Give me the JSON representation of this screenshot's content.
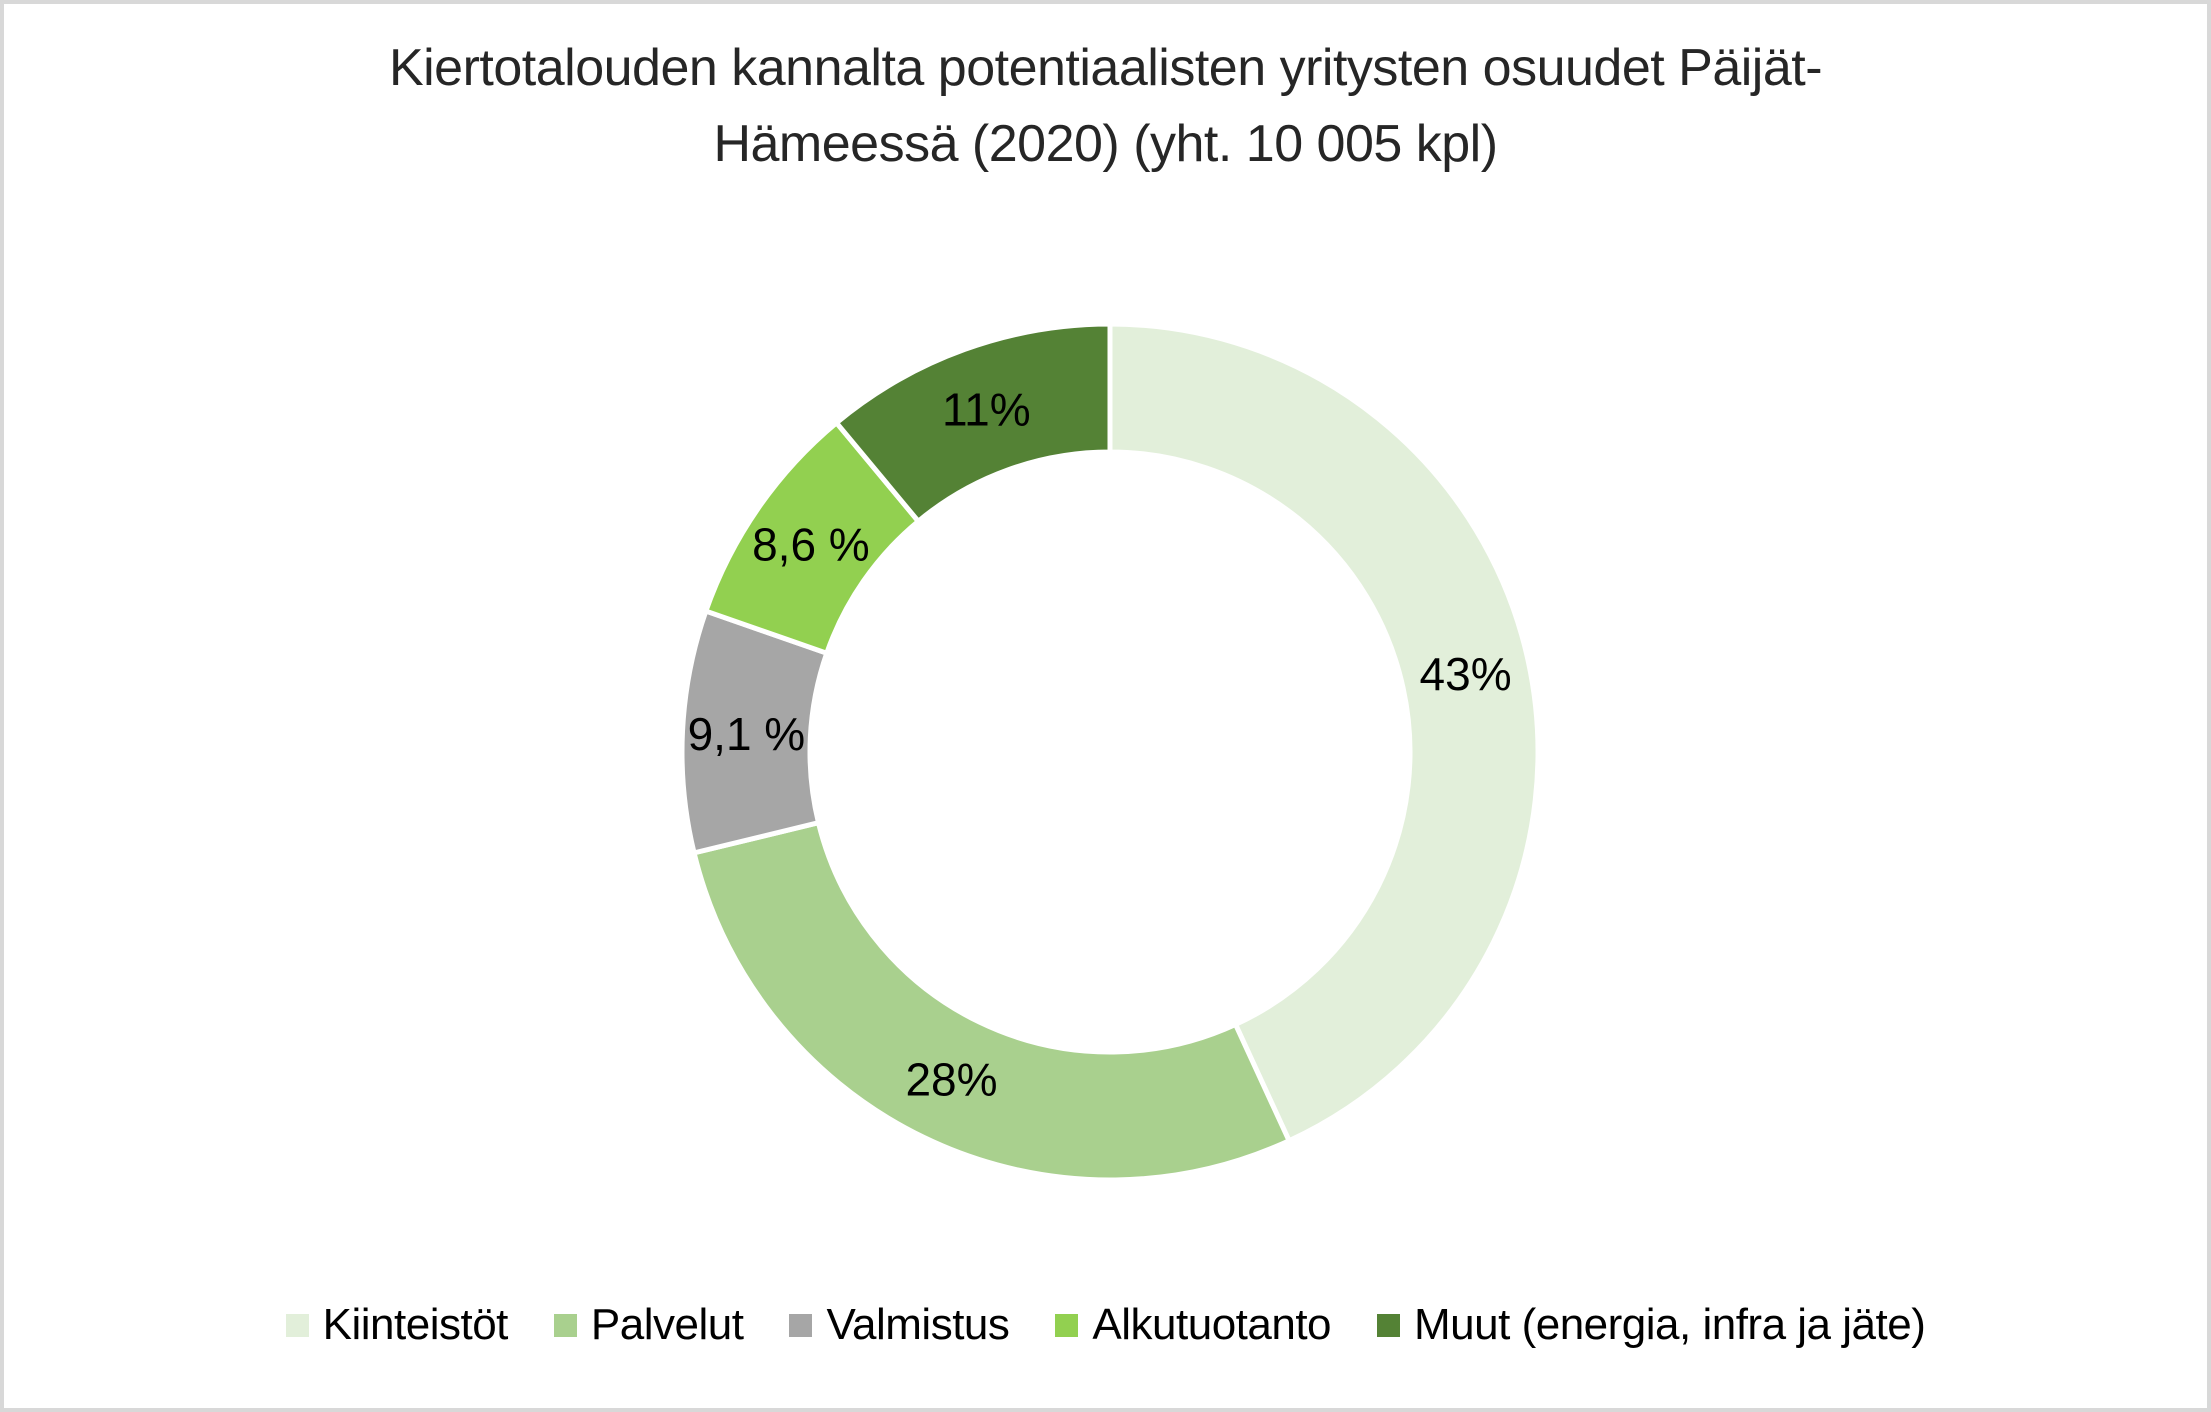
{
  "frame": {
    "background": "#FFFFFF",
    "border_color": "#D8D8D8"
  },
  "title": {
    "text": "Kiertotalouden kannalta potentiaalisten yritysten osuudet Päijät-Hämeessä (2020) (yht. 10 005 kpl)",
    "line1": "Kiertotalouden kannalta potentiaalisten yritysten osuudet Päijät-",
    "line2": "Hämeessä (2020) (yht. 10 005 kpl)",
    "color": "#262626"
  },
  "chart_data": {
    "type": "pie",
    "subtype": "donut",
    "title": "Kiertotalouden kannalta potentiaalisten yritysten osuudet Päijät-Hämeessä (2020) (yht. 10 005 kpl)",
    "total_label": "yht. 10 005 kpl",
    "categories": [
      "Kiinteistöt",
      "Palvelut",
      "Valmistus",
      "Alkutuotanto",
      "Muut (energia, infra ja jäte)"
    ],
    "values": [
      43,
      28,
      9.1,
      8.6,
      11
    ],
    "data_labels": [
      "43%",
      "28%",
      "9,1 %",
      "8,6 %",
      "11%"
    ],
    "colors": [
      "#E2EFDA",
      "#A9D08E",
      "#A6A6A6",
      "#92D050",
      "#548235"
    ],
    "label_color": "#000000",
    "slice_border_color": "#FFFFFF",
    "start_angle_deg": 0,
    "direction": "clockwise",
    "donut_hole_ratio": 0.7,
    "legend_position": "bottom"
  },
  "legend": {
    "items": [
      {
        "label": "Kiinteistöt",
        "color": "#E2EFDA"
      },
      {
        "label": "Palvelut",
        "color": "#A9D08E"
      },
      {
        "label": "Valmistus",
        "color": "#A6A6A6"
      },
      {
        "label": "Alkutuotanto",
        "color": "#92D050"
      },
      {
        "label": "Muut (energia, infra ja jäte)",
        "color": "#548235"
      }
    ]
  }
}
